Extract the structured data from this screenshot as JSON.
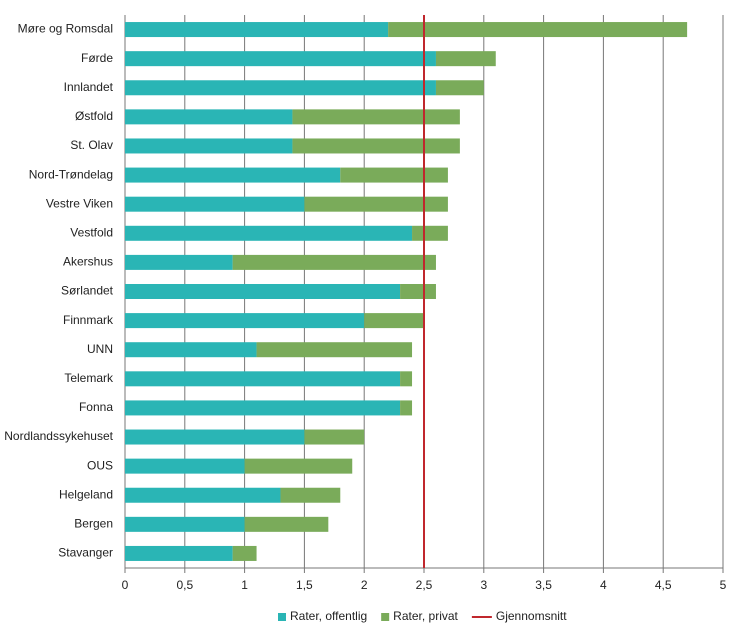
{
  "chart_data": {
    "type": "bar",
    "orientation": "horizontal",
    "stacked": true,
    "categories": [
      "Møre og Romsdal",
      "Førde",
      "Innlandet",
      "Østfold",
      "St. Olav",
      "Nord-Trøndelag",
      "Vestre Viken",
      "Vestfold",
      "Akershus",
      "Sørlandet",
      "Finnmark",
      "UNN",
      "Telemark",
      "Fonna",
      "Nordlandssykehuset",
      "OUS",
      "Helgeland",
      "Bergen",
      "Stavanger"
    ],
    "series": [
      {
        "name": "Rater, offentlig",
        "color": "#2ab5b5",
        "values": [
          2.2,
          2.6,
          2.6,
          1.4,
          1.4,
          1.8,
          1.5,
          2.4,
          0.9,
          2.3,
          2.0,
          1.1,
          2.3,
          2.3,
          1.5,
          1.0,
          1.3,
          1.0,
          0.9
        ]
      },
      {
        "name": "Rater, privat",
        "color": "#7aab5a",
        "values": [
          2.5,
          0.5,
          0.4,
          1.4,
          1.4,
          0.9,
          1.2,
          0.3,
          1.7,
          0.3,
          0.5,
          1.3,
          0.1,
          0.1,
          0.5,
          0.9,
          0.5,
          0.7,
          0.2
        ]
      }
    ],
    "average": {
      "name": "Gjennomsnitt",
      "value": 2.5,
      "color": "#c0272d"
    },
    "xlim": [
      0,
      5
    ],
    "xticks": [
      0,
      {
        "value": 0.5,
        "label": "0,5"
      },
      1,
      {
        "value": 1.5,
        "label": "1,5"
      },
      2,
      {
        "value": 2.5,
        "label": "2,5"
      },
      3,
      {
        "value": 3.5,
        "label": "3,5"
      },
      4,
      {
        "value": 4.5,
        "label": "4,5"
      },
      5
    ],
    "grid": true
  }
}
